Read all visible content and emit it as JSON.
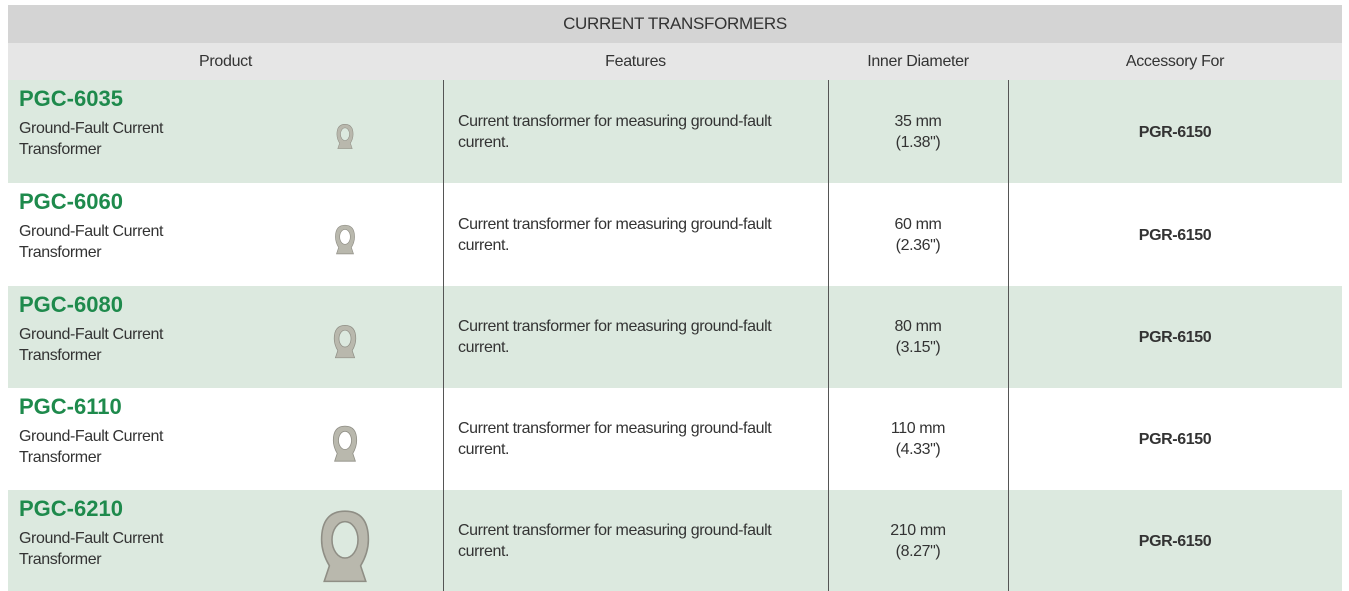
{
  "table": {
    "title": "CURRENT TRANSFORMERS",
    "columns": [
      "Product",
      "Features",
      "Inner Diameter",
      "Accessory For"
    ],
    "rows": [
      {
        "product": "PGC-6035",
        "description": "Ground-Fault Current Transformer",
        "features": "Current transformer for measuring ground-fault current.",
        "diameter": [
          "35 mm",
          "(1.38\")"
        ],
        "accessory": "PGR-6150"
      },
      {
        "product": "PGC-6060",
        "description": "Ground-Fault Current Transformer",
        "features": "Current transformer for measuring ground-fault current.",
        "diameter": [
          "60 mm",
          "(2.36\")"
        ],
        "accessory": "PGR-6150"
      },
      {
        "product": "PGC-6080",
        "description": "Ground-Fault Current Transformer",
        "features": "Current transformer for measuring ground-fault current.",
        "diameter": [
          "80 mm",
          "(3.15\")"
        ],
        "accessory": "PGR-6150"
      },
      {
        "product": "PGC-6110",
        "description": "Ground-Fault Current Transformer",
        "features": "Current transformer for measuring ground-fault current.",
        "diameter": [
          "110 mm",
          "(4.33\")"
        ],
        "accessory": "PGR-6150"
      },
      {
        "product": "PGC-6210",
        "description": "Ground-Fault Current Transformer",
        "features": "Current transformer for measuring ground-fault current.",
        "diameter": [
          "210 mm",
          "(8.27\")"
        ],
        "accessory": "PGR-6150"
      }
    ]
  }
}
